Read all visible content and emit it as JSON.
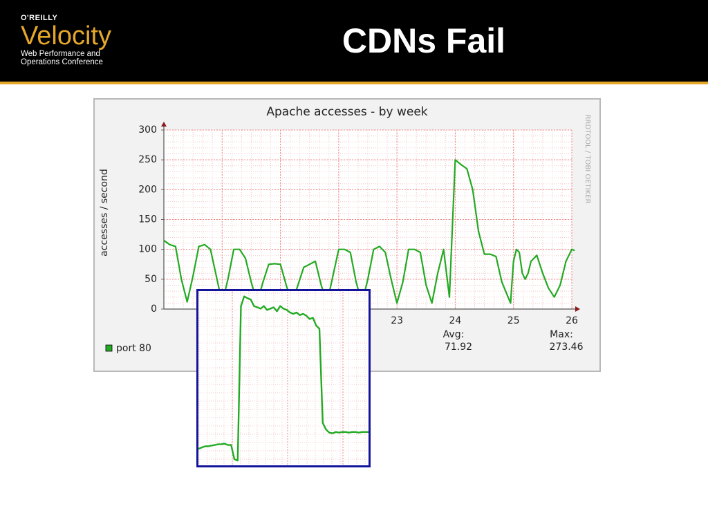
{
  "slide": {
    "title": "CDNs Fail",
    "logo": {
      "brand": "O'REILLY",
      "name": "Velocity",
      "tagline_line1": "Web Performance and",
      "tagline_line2": "Operations Conference"
    }
  },
  "chart_data": {
    "type": "line",
    "title": "Apache accesses - by week",
    "ylabel": "accesses / second",
    "side_label": "RRDTOOL / TOBI OETIKER",
    "ylim": [
      0,
      300
    ],
    "yticks": [
      "0",
      "50",
      "100",
      "150",
      "200",
      "250",
      "300"
    ],
    "xlim": [
      19,
      26
    ],
    "xticks_visible": [
      "23",
      "24",
      "25",
      "26"
    ],
    "legend": {
      "label": "port 80",
      "color": "#22aa22"
    },
    "stats": {
      "avg_label": "Avg:",
      "avg_value": "71.92",
      "max_label": "Max:",
      "max_value": "273.46"
    },
    "series": [
      {
        "name": "port 80",
        "x": [
          19.0,
          19.1,
          19.2,
          19.3,
          19.4,
          19.5,
          19.6,
          19.7,
          19.8,
          19.9,
          20.0,
          20.1,
          20.2,
          20.3,
          20.4,
          20.5,
          20.6,
          20.7,
          20.8,
          20.9,
          21.0,
          21.1,
          21.2,
          21.3,
          21.4,
          21.5,
          21.6,
          21.7,
          21.8,
          21.9,
          22.0,
          22.1,
          22.2,
          22.3,
          22.4,
          22.5,
          22.6,
          22.7,
          22.8,
          22.9,
          23.0,
          23.1,
          23.2,
          23.3,
          23.4,
          23.5,
          23.6,
          23.7,
          23.8,
          23.9,
          24.0,
          24.1,
          24.2,
          24.3,
          24.4,
          24.5,
          24.6,
          24.7,
          24.8,
          24.95,
          24.97,
          25.0,
          25.05,
          25.1,
          25.15,
          25.2,
          25.25,
          25.3,
          25.4,
          25.5,
          25.6,
          25.7,
          25.8,
          25.9,
          26.0,
          26.05
        ],
        "values": [
          115,
          108,
          105,
          50,
          12,
          55,
          105,
          108,
          100,
          55,
          10,
          50,
          100,
          100,
          85,
          45,
          10,
          45,
          75,
          76,
          75,
          40,
          10,
          40,
          70,
          75,
          80,
          40,
          10,
          55,
          100,
          100,
          95,
          45,
          10,
          50,
          100,
          105,
          95,
          50,
          10,
          45,
          100,
          100,
          95,
          40,
          10,
          60,
          100,
          20,
          250,
          242,
          235,
          200,
          130,
          92,
          92,
          88,
          45,
          10,
          40,
          80,
          100,
          95,
          60,
          50,
          60,
          80,
          90,
          60,
          35,
          20,
          40,
          80,
          100,
          98
        ]
      }
    ]
  },
  "zoom_inset": {
    "description_hidden": "",
    "values": [
      20,
      22,
      24,
      24,
      25,
      26,
      27,
      27,
      28,
      26,
      26,
      4,
      2,
      240,
      255,
      252,
      250,
      240,
      238,
      236,
      240,
      234,
      236,
      238,
      232,
      240,
      236,
      234,
      230,
      228,
      230,
      226,
      228,
      225,
      220,
      222,
      210,
      205,
      60,
      50,
      45,
      44,
      46,
      45,
      46,
      46,
      45,
      46,
      46,
      45,
      46,
      46,
      46
    ]
  }
}
